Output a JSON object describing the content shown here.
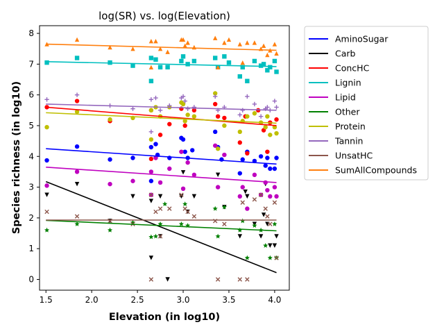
{
  "chart_data": {
    "type": "scatter",
    "title": "log(SR) vs. log(Elevation)",
    "xlabel": "Elevation (in log10)",
    "ylabel": "Species richness (in log10)",
    "xlim": [
      1.43,
      4.16
    ],
    "ylim": [
      -0.35,
      8.25
    ],
    "xticks": [
      1.5,
      2.0,
      2.5,
      3.0,
      3.5,
      4.0
    ],
    "xtick_labels": [
      "1.5",
      "2.0",
      "2.5",
      "3.0",
      "3.5",
      "4.0"
    ],
    "yticks": [
      0,
      1,
      2,
      3,
      4,
      5,
      6,
      7,
      8
    ],
    "ytick_labels": [
      "0",
      "1",
      "2",
      "3",
      "4",
      "5",
      "6",
      "7",
      "8"
    ],
    "grid": false,
    "legend_position": "outside-right",
    "series": [
      {
        "name": "AminoSugar",
        "color": "#0000ff",
        "marker": "circle",
        "fit": [
          [
            1.5,
            4.25
          ],
          [
            4.02,
            3.75
          ]
        ],
        "points": [
          [
            1.51,
            3.87
          ],
          [
            1.84,
            4.32
          ],
          [
            2.2,
            3.9
          ],
          [
            2.45,
            3.95
          ],
          [
            2.65,
            3.2
          ],
          [
            2.65,
            4.3
          ],
          [
            2.7,
            4.4
          ],
          [
            2.72,
            4.05
          ],
          [
            2.85,
            3.95
          ],
          [
            2.98,
            4.6
          ],
          [
            3.0,
            4.55
          ],
          [
            3.02,
            4.15
          ],
          [
            3.05,
            3.95
          ],
          [
            3.1,
            4.2
          ],
          [
            3.35,
            4.8
          ],
          [
            3.38,
            4.3
          ],
          [
            3.42,
            3.9
          ],
          [
            3.62,
            3.45
          ],
          [
            3.65,
            3.9
          ],
          [
            3.7,
            4.15
          ],
          [
            3.78,
            3.85
          ],
          [
            3.85,
            4.0
          ],
          [
            3.9,
            3.7
          ],
          [
            3.92,
            3.95
          ],
          [
            3.95,
            3.6
          ],
          [
            4.0,
            3.6
          ],
          [
            4.02,
            3.95
          ]
        ]
      },
      {
        "name": "Carb",
        "color": "#000000",
        "marker": "triangle-down",
        "fit": [
          [
            1.5,
            3.18
          ],
          [
            4.02,
            0.22
          ]
        ],
        "points": [
          [
            1.51,
            2.75
          ],
          [
            1.84,
            3.1
          ],
          [
            2.2,
            1.9
          ],
          [
            2.45,
            2.7
          ],
          [
            2.65,
            2.55
          ],
          [
            2.65,
            0.7
          ],
          [
            2.75,
            2.7
          ],
          [
            2.75,
            1.4
          ],
          [
            2.83,
            0.0
          ],
          [
            2.98,
            2.7
          ],
          [
            3.0,
            3.48
          ],
          [
            3.05,
            2.2
          ],
          [
            3.12,
            2.7
          ],
          [
            3.38,
            3.4
          ],
          [
            3.45,
            2.35
          ],
          [
            3.62,
            1.4
          ],
          [
            3.68,
            2.85
          ],
          [
            3.7,
            2.7
          ],
          [
            3.78,
            1.8
          ],
          [
            3.85,
            1.4
          ],
          [
            3.88,
            2.1
          ],
          [
            3.9,
            3.1
          ],
          [
            3.92,
            1.8
          ],
          [
            3.95,
            1.1
          ],
          [
            4.0,
            1.1
          ],
          [
            4.02,
            1.4
          ]
        ]
      },
      {
        "name": "ConcHC",
        "color": "#ff0000",
        "marker": "circle",
        "fit": [
          [
            1.5,
            5.6
          ],
          [
            4.02,
            5.0
          ]
        ],
        "points": [
          [
            1.51,
            5.6
          ],
          [
            1.84,
            5.8
          ],
          [
            2.2,
            5.15
          ],
          [
            2.65,
            5.5
          ],
          [
            2.65,
            3.92
          ],
          [
            2.75,
            4.7
          ],
          [
            2.85,
            5.05
          ],
          [
            2.98,
            5.55
          ],
          [
            3.02,
            5.0
          ],
          [
            3.12,
            5.5
          ],
          [
            3.35,
            5.7
          ],
          [
            3.38,
            5.3
          ],
          [
            3.45,
            5.25
          ],
          [
            3.62,
            4.45
          ],
          [
            3.68,
            5.3
          ],
          [
            3.7,
            4.1
          ],
          [
            3.82,
            5.5
          ],
          [
            3.88,
            4.85
          ],
          [
            3.92,
            4.15
          ],
          [
            3.95,
            5.1
          ],
          [
            4.02,
            5.2
          ]
        ]
      },
      {
        "name": "Lignin",
        "color": "#00bfbf",
        "marker": "square",
        "fit": [
          [
            1.5,
            7.08
          ],
          [
            4.02,
            6.92
          ]
        ],
        "points": [
          [
            1.51,
            7.05
          ],
          [
            1.84,
            7.2
          ],
          [
            2.2,
            7.05
          ],
          [
            2.45,
            6.95
          ],
          [
            2.65,
            7.2
          ],
          [
            2.65,
            6.45
          ],
          [
            2.7,
            7.15
          ],
          [
            2.75,
            6.9
          ],
          [
            2.83,
            6.9
          ],
          [
            2.98,
            7.1
          ],
          [
            3.0,
            7.25
          ],
          [
            3.05,
            7.0
          ],
          [
            3.12,
            7.1
          ],
          [
            3.35,
            7.2
          ],
          [
            3.38,
            6.9
          ],
          [
            3.45,
            7.25
          ],
          [
            3.5,
            7.05
          ],
          [
            3.62,
            6.6
          ],
          [
            3.65,
            6.9
          ],
          [
            3.7,
            6.45
          ],
          [
            3.78,
            7.1
          ],
          [
            3.85,
            6.95
          ],
          [
            3.88,
            7.0
          ],
          [
            3.92,
            6.8
          ],
          [
            3.95,
            6.9
          ],
          [
            4.0,
            7.1
          ],
          [
            4.02,
            6.75
          ]
        ]
      },
      {
        "name": "Lipid",
        "color": "#bf00bf",
        "marker": "circle",
        "fit": [
          [
            1.5,
            3.65
          ],
          [
            4.02,
            3.15
          ]
        ],
        "points": [
          [
            1.51,
            3.05
          ],
          [
            1.84,
            3.5
          ],
          [
            2.2,
            3.1
          ],
          [
            2.45,
            3.2
          ],
          [
            2.65,
            2.75
          ],
          [
            2.65,
            3.5
          ],
          [
            2.7,
            3.95
          ],
          [
            2.75,
            3.15
          ],
          [
            2.85,
            3.6
          ],
          [
            2.98,
            4.15
          ],
          [
            3.0,
            2.95
          ],
          [
            3.05,
            3.8
          ],
          [
            3.12,
            3.4
          ],
          [
            3.35,
            4.35
          ],
          [
            3.38,
            3.0
          ],
          [
            3.45,
            4.05
          ],
          [
            3.62,
            2.7
          ],
          [
            3.65,
            3.0
          ],
          [
            3.7,
            2.3
          ],
          [
            3.78,
            3.4
          ],
          [
            3.85,
            2.75
          ],
          [
            3.9,
            3.15
          ],
          [
            3.92,
            2.9
          ],
          [
            3.95,
            2.7
          ],
          [
            4.0,
            3.0
          ],
          [
            4.02,
            2.7
          ]
        ]
      },
      {
        "name": "Other",
        "color": "#008000",
        "marker": "star",
        "fit": [
          [
            1.5,
            1.92
          ],
          [
            4.02,
            1.58
          ]
        ],
        "points": [
          [
            1.51,
            1.6
          ],
          [
            1.84,
            1.8
          ],
          [
            2.2,
            1.6
          ],
          [
            2.45,
            1.85
          ],
          [
            2.65,
            1.38
          ],
          [
            2.7,
            1.4
          ],
          [
            2.75,
            1.8
          ],
          [
            2.8,
            2.45
          ],
          [
            2.98,
            1.8
          ],
          [
            3.02,
            2.45
          ],
          [
            3.05,
            1.75
          ],
          [
            3.35,
            2.3
          ],
          [
            3.38,
            1.4
          ],
          [
            3.45,
            2.35
          ],
          [
            3.62,
            1.6
          ],
          [
            3.65,
            1.9
          ],
          [
            3.7,
            0.7
          ],
          [
            3.78,
            1.75
          ],
          [
            3.85,
            1.6
          ],
          [
            3.9,
            1.1
          ],
          [
            3.95,
            0.7
          ],
          [
            4.0,
            1.8
          ],
          [
            4.02,
            0.7
          ]
        ]
      },
      {
        "name": "Protein",
        "color": "#bfbf00",
        "marker": "circle",
        "fit": [
          [
            1.5,
            5.42
          ],
          [
            4.02,
            5.08
          ]
        ],
        "points": [
          [
            1.51,
            4.95
          ],
          [
            1.84,
            5.45
          ],
          [
            2.2,
            5.2
          ],
          [
            2.45,
            5.25
          ],
          [
            2.65,
            4.55
          ],
          [
            2.65,
            5.5
          ],
          [
            2.7,
            5.6
          ],
          [
            2.75,
            5.3
          ],
          [
            2.85,
            5.6
          ],
          [
            2.98,
            5.75
          ],
          [
            3.0,
            5.7
          ],
          [
            3.02,
            5.15
          ],
          [
            3.05,
            5.35
          ],
          [
            3.12,
            5.3
          ],
          [
            3.35,
            6.05
          ],
          [
            3.38,
            4.25
          ],
          [
            3.45,
            5.0
          ],
          [
            3.62,
            4.8
          ],
          [
            3.65,
            5.15
          ],
          [
            3.7,
            5.3
          ],
          [
            3.78,
            5.4
          ],
          [
            3.85,
            5.1
          ],
          [
            3.9,
            4.95
          ],
          [
            3.92,
            5.3
          ],
          [
            3.95,
            4.7
          ],
          [
            4.0,
            4.95
          ],
          [
            4.02,
            4.75
          ]
        ]
      },
      {
        "name": "Tannin",
        "color": "#9467bd",
        "marker": "plus",
        "fit": [
          [
            1.5,
            5.7
          ],
          [
            4.02,
            5.5
          ]
        ],
        "points": [
          [
            1.51,
            5.85
          ],
          [
            1.84,
            6.0
          ],
          [
            2.2,
            5.65
          ],
          [
            2.45,
            5.55
          ],
          [
            2.65,
            5.85
          ],
          [
            2.65,
            4.8
          ],
          [
            2.7,
            5.9
          ],
          [
            2.75,
            5.5
          ],
          [
            2.85,
            5.65
          ],
          [
            2.98,
            5.9
          ],
          [
            3.0,
            5.95
          ],
          [
            3.02,
            5.8
          ],
          [
            3.05,
            5.55
          ],
          [
            3.12,
            5.6
          ],
          [
            3.35,
            5.95
          ],
          [
            3.38,
            5.5
          ],
          [
            3.45,
            5.6
          ],
          [
            3.62,
            5.35
          ],
          [
            3.65,
            5.5
          ],
          [
            3.7,
            5.95
          ],
          [
            3.78,
            5.7
          ],
          [
            3.85,
            5.3
          ],
          [
            3.9,
            5.55
          ],
          [
            3.92,
            5.6
          ],
          [
            3.95,
            5.5
          ],
          [
            4.0,
            5.8
          ],
          [
            4.02,
            5.6
          ]
        ]
      },
      {
        "name": "UnsatHC",
        "color": "#8c564b",
        "marker": "x",
        "fit": [
          [
            1.5,
            1.93
          ],
          [
            4.02,
            1.93
          ]
        ],
        "points": [
          [
            1.51,
            2.2
          ],
          [
            1.84,
            2.05
          ],
          [
            2.2,
            1.9
          ],
          [
            2.45,
            1.8
          ],
          [
            2.65,
            2.75
          ],
          [
            2.65,
            0.0
          ],
          [
            2.7,
            2.2
          ],
          [
            2.75,
            2.3
          ],
          [
            2.75,
            1.4
          ],
          [
            2.85,
            2.3
          ],
          [
            2.98,
            2.75
          ],
          [
            3.02,
            2.3
          ],
          [
            3.05,
            2.2
          ],
          [
            3.12,
            2.05
          ],
          [
            3.35,
            1.9
          ],
          [
            3.38,
            0.0
          ],
          [
            3.45,
            1.8
          ],
          [
            3.62,
            0.0
          ],
          [
            3.65,
            2.5
          ],
          [
            3.7,
            0.0
          ],
          [
            3.78,
            2.6
          ],
          [
            3.85,
            2.75
          ],
          [
            3.9,
            2.3
          ],
          [
            3.92,
            2.05
          ],
          [
            3.95,
            1.8
          ],
          [
            4.0,
            2.5
          ],
          [
            4.02,
            0.7
          ]
        ]
      },
      {
        "name": "SumAllCompounds",
        "color": "#ff7f0e",
        "marker": "triangle-up",
        "fit": [
          [
            1.5,
            7.65
          ],
          [
            4.02,
            7.45
          ]
        ],
        "points": [
          [
            1.51,
            7.65
          ],
          [
            1.84,
            7.8
          ],
          [
            2.2,
            7.55
          ],
          [
            2.45,
            7.5
          ],
          [
            2.65,
            7.75
          ],
          [
            2.65,
            6.9
          ],
          [
            2.7,
            7.75
          ],
          [
            2.75,
            7.5
          ],
          [
            2.83,
            7.4
          ],
          [
            2.98,
            7.8
          ],
          [
            3.0,
            7.8
          ],
          [
            3.02,
            7.6
          ],
          [
            3.05,
            7.7
          ],
          [
            3.12,
            7.55
          ],
          [
            3.35,
            7.85
          ],
          [
            3.38,
            6.9
          ],
          [
            3.45,
            7.7
          ],
          [
            3.5,
            7.8
          ],
          [
            3.62,
            7.65
          ],
          [
            3.65,
            7.05
          ],
          [
            3.7,
            7.7
          ],
          [
            3.78,
            7.7
          ],
          [
            3.85,
            7.5
          ],
          [
            3.88,
            7.6
          ],
          [
            3.92,
            7.3
          ],
          [
            3.95,
            7.45
          ],
          [
            4.0,
            7.65
          ],
          [
            4.02,
            7.35
          ]
        ]
      }
    ]
  }
}
